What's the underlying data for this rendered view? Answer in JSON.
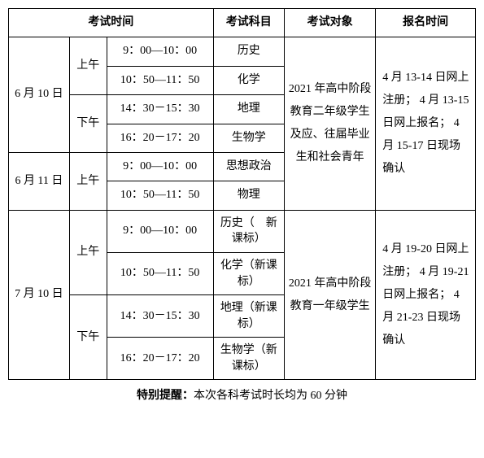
{
  "headers": {
    "time": "考试时间",
    "subject": "考试科目",
    "target": "考试对象",
    "register": "报名时间"
  },
  "dates": {
    "jun10": "6 月 10 日",
    "jun11": "6 月 11 日",
    "jul10": "7 月 10 日"
  },
  "sessions": {
    "morning": "上午",
    "afternoon": "下午"
  },
  "times": {
    "t1": "9：00—10：00",
    "t2": "10：50—11：50",
    "t3": "14：30－15：30",
    "t4": "16：20－17：20"
  },
  "subjects": {
    "history": "历史",
    "chemistry": "化学",
    "geography": "地理",
    "biology": "生物学",
    "politics": "思想政治",
    "physics": "物理",
    "history_new": "历史（　新　课标）",
    "chemistry_new": "化学（新课标）",
    "geography_new": "地理（新课标）",
    "biology_new": "生物学（新课标）"
  },
  "targets": {
    "group1": "2021 年高中阶段教育二年级学生及应、往届毕业生和社会青年",
    "group2": "2021 年高中阶段教育一年级学生"
  },
  "registration": {
    "group1": "4 月 13-14 日网上注册；\n4 月 13-15 日网上报名；\n4 月 15-17 日现场确认",
    "group2": "4 月 19-20 日网上注册；\n4 月 19-21 日网上报名；\n4 月 21-23 日现场确认"
  },
  "footer": {
    "label": "特别提醒：",
    "text": "本次各科考试时长均为 60 分钟"
  }
}
